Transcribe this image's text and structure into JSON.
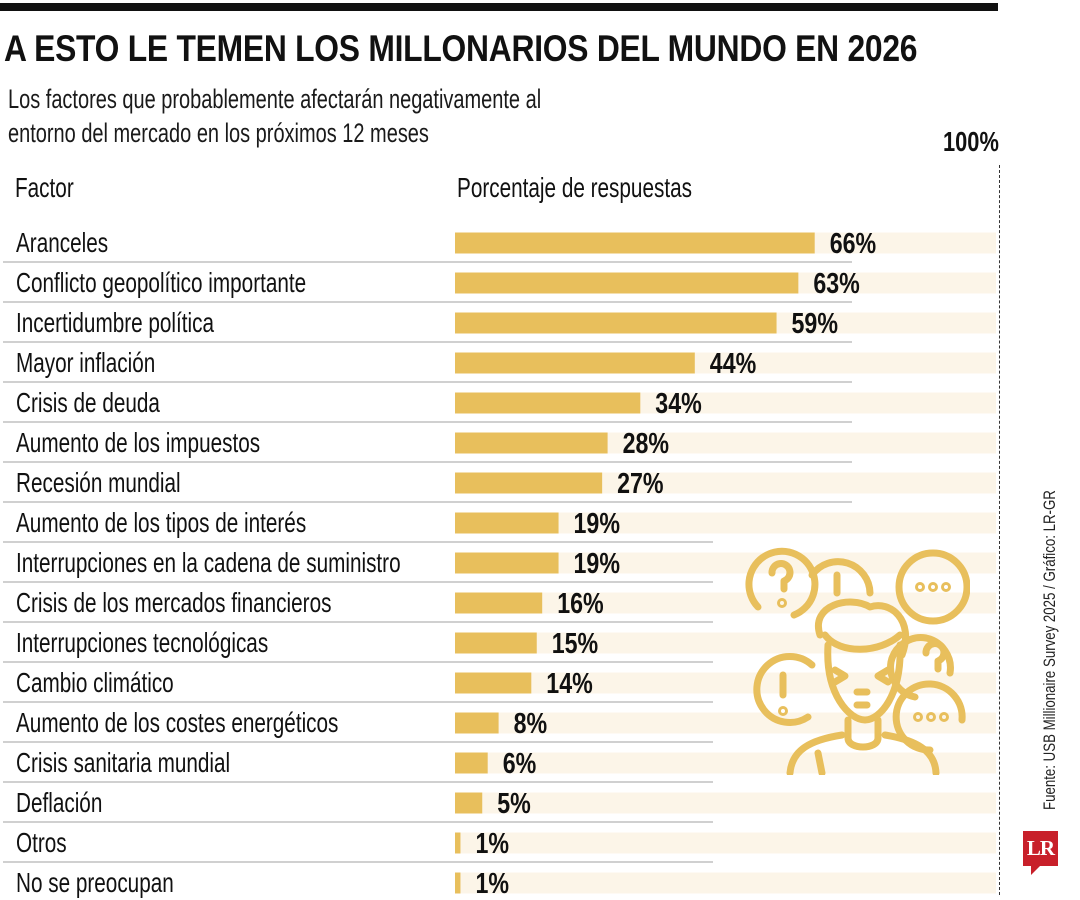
{
  "header": {
    "title": "A ESTO LE TEMEN LOS MILLONARIOS DEL MUNDO EN 2026",
    "subtitle_line1": "Los factores que probablemente afectarán negativamente al",
    "subtitle_line2": "entorno del mercado en los próximos 12 meses"
  },
  "columns": {
    "factor": "Factor",
    "percentage": "Porcentaje de respuestas",
    "max_label": "100%"
  },
  "footer": {
    "source": "Fuente: USB Millionaire Survey 2025 / Gráfico: LR-GR",
    "logo_text": "LR"
  },
  "colors": {
    "bar": "#E8BF5C",
    "stripe": "#FCF5E8",
    "separator": "#B5B5B5",
    "illustration": "#E8BF5C",
    "logo": "#C8202A"
  },
  "illustration": "confused-person-with-speech-bubbles-icon",
  "chart_data": {
    "type": "bar",
    "orientation": "horizontal",
    "title": "A ESTO LE TEMEN LOS MILLONARIOS DEL MUNDO EN 2026",
    "subtitle": "Los factores que probablemente afectarán negativamente al entorno del mercado en los próximos 12 meses",
    "xlabel": "Porcentaje de respuestas",
    "ylabel": "Factor",
    "xlim": [
      0,
      100
    ],
    "unit": "%",
    "categories": [
      "Aranceles",
      "Conflicto geopolítico importante",
      "Incertidumbre política",
      "Mayor inflación",
      "Crisis de deuda",
      "Aumento de los impuestos",
      "Recesión mundial",
      "Aumento de los tipos de interés",
      "Interrupciones en la cadena de suministro",
      "Crisis de los mercados financieros",
      "Interrupciones tecnológicas",
      "Cambio climático",
      "Aumento de los costes energéticos",
      "Crisis sanitaria mundial",
      "Deflación",
      "Otros",
      "No se preocupan"
    ],
    "values": [
      66,
      63,
      59,
      44,
      34,
      28,
      27,
      19,
      19,
      16,
      15,
      14,
      8,
      6,
      5,
      1,
      1
    ],
    "labels": [
      "66%",
      "63%",
      "59%",
      "44%",
      "34%",
      "28%",
      "27%",
      "19%",
      "19%",
      "16%",
      "15%",
      "14%",
      "8%",
      "6%",
      "5%",
      "1%",
      "1%"
    ],
    "reference_line": {
      "value": 100,
      "label": "100%",
      "style": "dashed"
    },
    "grid": false,
    "legend": "none"
  }
}
